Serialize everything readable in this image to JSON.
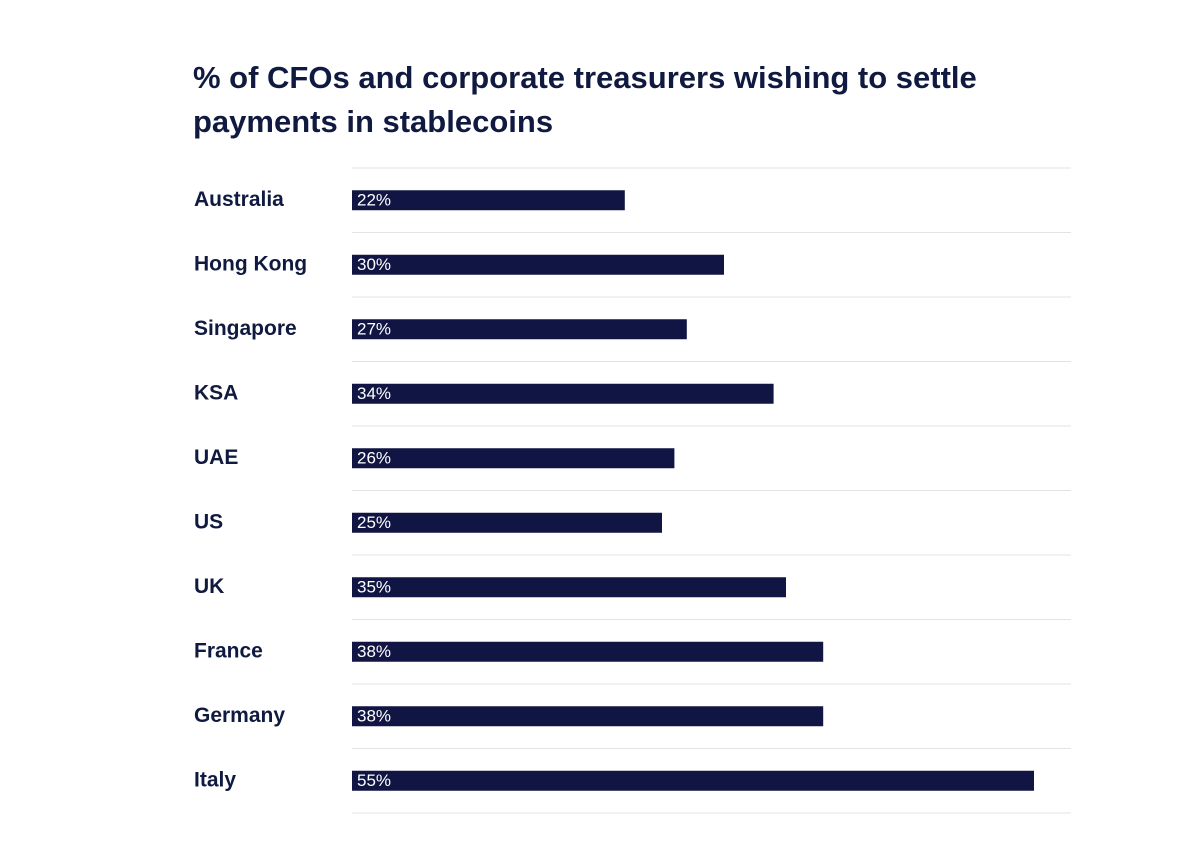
{
  "chart_data": {
    "type": "bar",
    "orientation": "horizontal",
    "title": "% of CFOs and corporate treasurers wishing to settle payments in stablecoins",
    "xlabel": "",
    "ylabel": "",
    "categories": [
      "Australia",
      "Hong Kong",
      "Singapore",
      "KSA",
      "UAE",
      "US",
      "UK",
      "France",
      "Germany",
      "Italy"
    ],
    "values": [
      22,
      30,
      27,
      34,
      26,
      25,
      35,
      38,
      38,
      55
    ],
    "value_labels": [
      "22%",
      "30%",
      "27%",
      "34%",
      "26%",
      "25%",
      "35%",
      "38%",
      "38%",
      "55%"
    ],
    "xlim": [
      0,
      58
    ],
    "grid": false,
    "legend": "none",
    "data_label_position": "inside-left"
  },
  "colors": {
    "bar": "#101543",
    "text": "#101a40",
    "value_label": "#ffffff",
    "separator": "#e3e3e3",
    "background": "#ffffff"
  }
}
